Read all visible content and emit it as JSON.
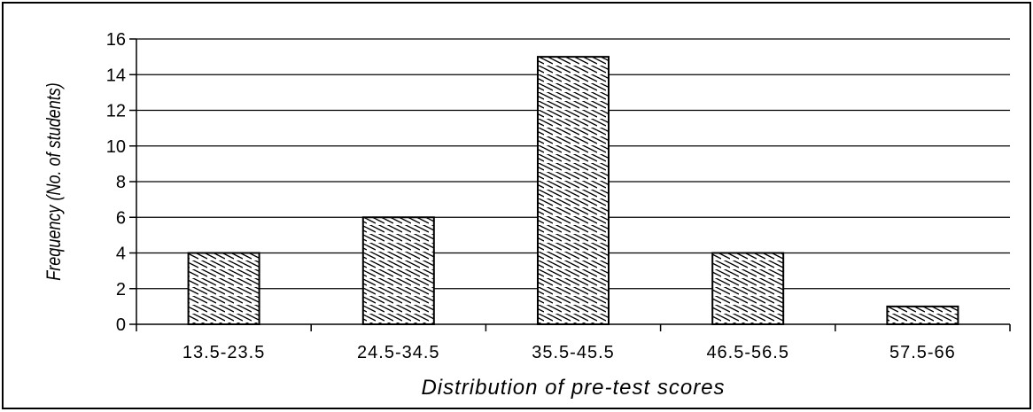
{
  "chart_data": {
    "type": "bar",
    "categories": [
      "13.5-23.5",
      "24.5-34.5",
      "35.5-45.5",
      "46.5-56.5",
      "57.5-66"
    ],
    "values": [
      4,
      6,
      15,
      4,
      1
    ],
    "xlabel": "Distribution of pre-test scores",
    "ylabel": "Frequency (No. of students)",
    "ylim": [
      0,
      16
    ],
    "yticks": [
      0,
      2,
      4,
      6,
      8,
      10,
      12,
      14,
      16
    ],
    "grid": true,
    "legend": "none",
    "bar_fill": "hatched",
    "colors": {
      "bar_stroke": "#000000",
      "bar_hatch": "#000000",
      "bar_background": "#ffffff",
      "gridline": "#000000",
      "frame": "#000000"
    }
  }
}
